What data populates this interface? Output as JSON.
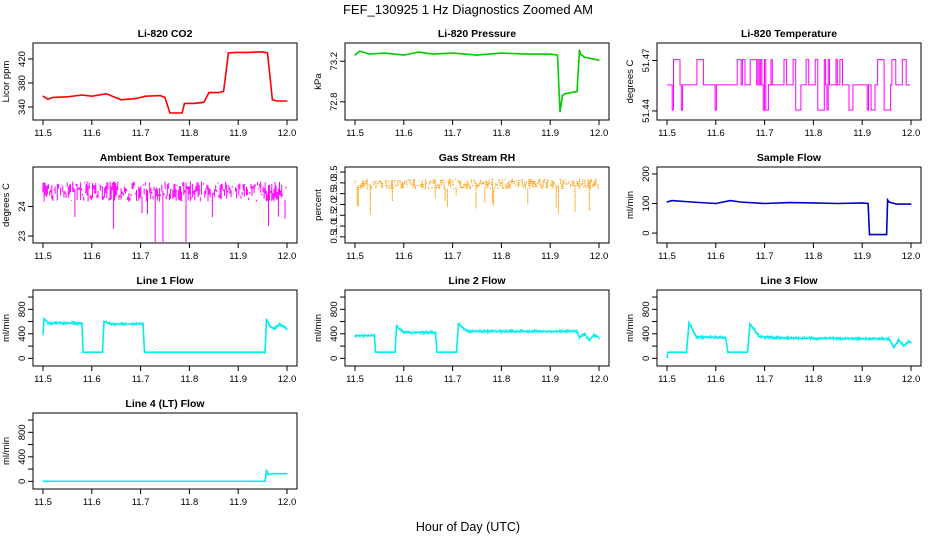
{
  "figure": {
    "title": "FEF_130925  1 Hz Diagnostics Zoomed AM",
    "xlabel": "Hour of Day (UTC)"
  },
  "chart_data": [
    {
      "type": "line",
      "title": "Li-820 CO2",
      "ylabel": "Licor ppm",
      "color": "#ff0000",
      "xlim": [
        11.5,
        12.0
      ],
      "ylim": [
        325,
        440
      ],
      "xticks": [
        "11.5",
        "11.6",
        "11.7",
        "11.8",
        "11.9",
        "12.0"
      ],
      "yticks": [
        340,
        380,
        420
      ],
      "series": [
        {
          "x": [
            11.5,
            11.51,
            11.52,
            11.55,
            11.58,
            11.6,
            11.63,
            11.66,
            11.69,
            11.71,
            11.74,
            11.75,
            11.76,
            11.785,
            11.79,
            11.81,
            11.83,
            11.84,
            11.86,
            11.87,
            11.88,
            11.895,
            11.92,
            11.95,
            11.96,
            11.97,
            11.98,
            12.0
          ],
          "y": [
            358,
            353,
            356,
            357,
            360,
            358,
            362,
            352,
            354,
            358,
            359,
            356,
            330,
            330,
            346,
            346,
            348,
            364,
            364,
            366,
            430,
            431,
            431,
            432,
            430,
            352,
            350,
            350
          ]
        }
      ]
    },
    {
      "type": "line",
      "title": "Li-820 Pressure",
      "ylabel": "kPa",
      "color": "#00cc00",
      "xlim": [
        11.5,
        12.0
      ],
      "ylim": [
        72.66,
        73.34
      ],
      "xticks": [
        "11.5",
        "11.6",
        "11.7",
        "11.8",
        "11.9",
        "12.0"
      ],
      "yticks": [
        72.8,
        73.2
      ],
      "series": [
        {
          "x": [
            11.5,
            11.505,
            11.51,
            11.53,
            11.56,
            11.6,
            11.63,
            11.66,
            11.7,
            11.75,
            11.8,
            11.85,
            11.9,
            11.915,
            11.92,
            11.925,
            11.93,
            11.955,
            11.96,
            11.962,
            11.97,
            11.99,
            12.0
          ],
          "y": [
            73.26,
            73.28,
            73.3,
            73.27,
            73.28,
            73.26,
            73.29,
            73.27,
            73.28,
            73.26,
            73.28,
            73.27,
            73.27,
            73.26,
            72.7,
            72.86,
            72.88,
            72.9,
            73.31,
            73.27,
            73.24,
            73.22,
            73.21
          ]
        }
      ]
    },
    {
      "type": "line",
      "title": "Li-820 Temperature",
      "ylabel": "degrees C",
      "color": "#ff00ff",
      "xlim": [
        11.5,
        12.0
      ],
      "ylim": [
        51.437,
        51.478
      ],
      "xticks": [
        "11.5",
        "11.6",
        "11.7",
        "11.8",
        "11.9",
        "12.0"
      ],
      "yticks": [
        51.44,
        51.47
      ],
      "levels": [
        51.4405,
        51.4555,
        51.4705
      ]
    },
    {
      "type": "line",
      "title": "Ambient Box Temperature",
      "ylabel": "degrees C",
      "color": "#ff00ff",
      "xlim": [
        11.5,
        12.0
      ],
      "ylim": [
        22.9,
        25.2
      ],
      "xticks": [
        "11.5",
        "11.6",
        "11.7",
        "11.8",
        "11.9",
        "12.0"
      ],
      "yticks": [
        23.0,
        24.0
      ],
      "center": 24.5,
      "spread": 0.35
    },
    {
      "type": "scatter",
      "title": "Gas Stream RH",
      "ylabel": "percent",
      "color": "#ff9900",
      "xlim": [
        11.5,
        12.0
      ],
      "ylim": [
        0.4,
        3.55
      ],
      "xticks": [
        "11.5",
        "11.6",
        "11.7",
        "11.8",
        "11.9",
        "12.0"
      ],
      "yticks": [
        0.5,
        1.5,
        2.5,
        3.5
      ],
      "ytick_labels": [
        "0.5",
        "1.5",
        "2.5",
        "3.5"
      ],
      "yticks_minor": [
        1.0,
        2.0,
        3.0
      ],
      "ytick_labels_minor": [
        "1.0",
        "2.0",
        "3.0"
      ],
      "center": 2.95,
      "spread": 0.25
    },
    {
      "type": "line",
      "title": "Sample Flow",
      "ylabel": "ml/min",
      "color": "#0000cc",
      "xlim": [
        11.5,
        12.0
      ],
      "ylim": [
        -20,
        210
      ],
      "xticks": [
        "11.5",
        "11.6",
        "11.7",
        "11.8",
        "11.9",
        "12.0"
      ],
      "yticks": [
        0,
        100,
        200
      ],
      "series": [
        {
          "x": [
            11.5,
            11.51,
            11.55,
            11.6,
            11.63,
            11.65,
            11.7,
            11.75,
            11.8,
            11.85,
            11.9,
            11.912,
            11.915,
            11.95,
            11.952,
            11.955,
            11.97,
            12.0
          ],
          "y": [
            105,
            110,
            105,
            100,
            110,
            105,
            100,
            103,
            102,
            100,
            102,
            100,
            -5,
            -5,
            112,
            105,
            98,
            98
          ]
        }
      ]
    },
    {
      "type": "line",
      "title": "Line 1 Flow",
      "ylabel": "ml/min",
      "color": "#00eeee",
      "xlim": [
        11.5,
        12.0
      ],
      "ylim": [
        -60,
        1050
      ],
      "xticks": [
        "11.5",
        "11.6",
        "11.7",
        "11.8",
        "11.9",
        "12.0"
      ],
      "yticks": [
        0,
        400,
        800
      ],
      "yticks_minor": [
        200,
        600,
        1000
      ],
      "ytick_labels": [
        "0",
        "400",
        "800"
      ],
      "series": [
        {
          "x": [
            11.5,
            11.502,
            11.51,
            11.58,
            11.582,
            11.622,
            11.625,
            11.64,
            11.705,
            11.708,
            11.955,
            11.958,
            11.965,
            11.975,
            11.985,
            12.0
          ],
          "y": [
            400,
            650,
            580,
            570,
            100,
            100,
            600,
            560,
            560,
            100,
            100,
            640,
            520,
            480,
            560,
            480
          ]
        }
      ]
    },
    {
      "type": "line",
      "title": "Line 2 Flow",
      "ylabel": "ml/min",
      "color": "#00eeee",
      "xlim": [
        11.5,
        12.0
      ],
      "ylim": [
        -60,
        1050
      ],
      "xticks": [
        "11.5",
        "11.6",
        "11.7",
        "11.8",
        "11.9",
        "12.0"
      ],
      "yticks": [
        0,
        400,
        800
      ],
      "yticks_minor": [
        200,
        600,
        1000
      ],
      "ytick_labels": [
        "0",
        "400",
        "800"
      ],
      "series": [
        {
          "x": [
            11.5,
            11.54,
            11.542,
            11.582,
            11.585,
            11.6,
            11.665,
            11.668,
            11.708,
            11.712,
            11.73,
            11.955,
            11.96,
            11.97,
            11.98,
            11.99,
            12.0
          ],
          "y": [
            370,
            370,
            100,
            100,
            520,
            420,
            420,
            100,
            100,
            560,
            440,
            440,
            340,
            400,
            300,
            380,
            340
          ]
        }
      ]
    },
    {
      "type": "line",
      "title": "Line 3 Flow",
      "ylabel": "ml/min",
      "color": "#00eeee",
      "xlim": [
        11.5,
        12.0
      ],
      "ylim": [
        -60,
        1050
      ],
      "xticks": [
        "11.5",
        "11.6",
        "11.7",
        "11.8",
        "11.9",
        "12.0"
      ],
      "yticks": [
        0,
        400,
        800
      ],
      "yticks_minor": [
        200,
        600,
        1000
      ],
      "ytick_labels": [
        "0",
        "400",
        "800"
      ],
      "series": [
        {
          "x": [
            11.5,
            11.502,
            11.54,
            11.545,
            11.56,
            11.62,
            11.625,
            11.665,
            11.67,
            11.69,
            11.75,
            11.9,
            11.955,
            11.965,
            11.975,
            11.985,
            11.995,
            12.0
          ],
          "y": [
            10,
            100,
            100,
            580,
            350,
            340,
            100,
            100,
            560,
            350,
            330,
            320,
            320,
            180,
            300,
            200,
            280,
            260
          ]
        }
      ]
    },
    {
      "type": "line",
      "title": "Line 4 (LT) Flow",
      "ylabel": "ml/min",
      "color": "#00eeee",
      "xlim": [
        11.5,
        12.0
      ],
      "ylim": [
        -60,
        1050
      ],
      "xticks": [
        "11.5",
        "11.6",
        "11.7",
        "11.8",
        "11.9",
        "12.0"
      ],
      "yticks": [
        0,
        400,
        800
      ],
      "yticks_minor": [
        200,
        600,
        1000
      ],
      "ytick_labels": [
        "0",
        "400",
        "800"
      ],
      "series": [
        {
          "x": [
            11.5,
            11.6,
            11.7,
            11.8,
            11.9,
            11.955,
            11.958,
            11.962,
            11.97,
            12.0
          ],
          "y": [
            0,
            0,
            0,
            0,
            0,
            0,
            170,
            110,
            125,
            125
          ]
        }
      ]
    }
  ]
}
